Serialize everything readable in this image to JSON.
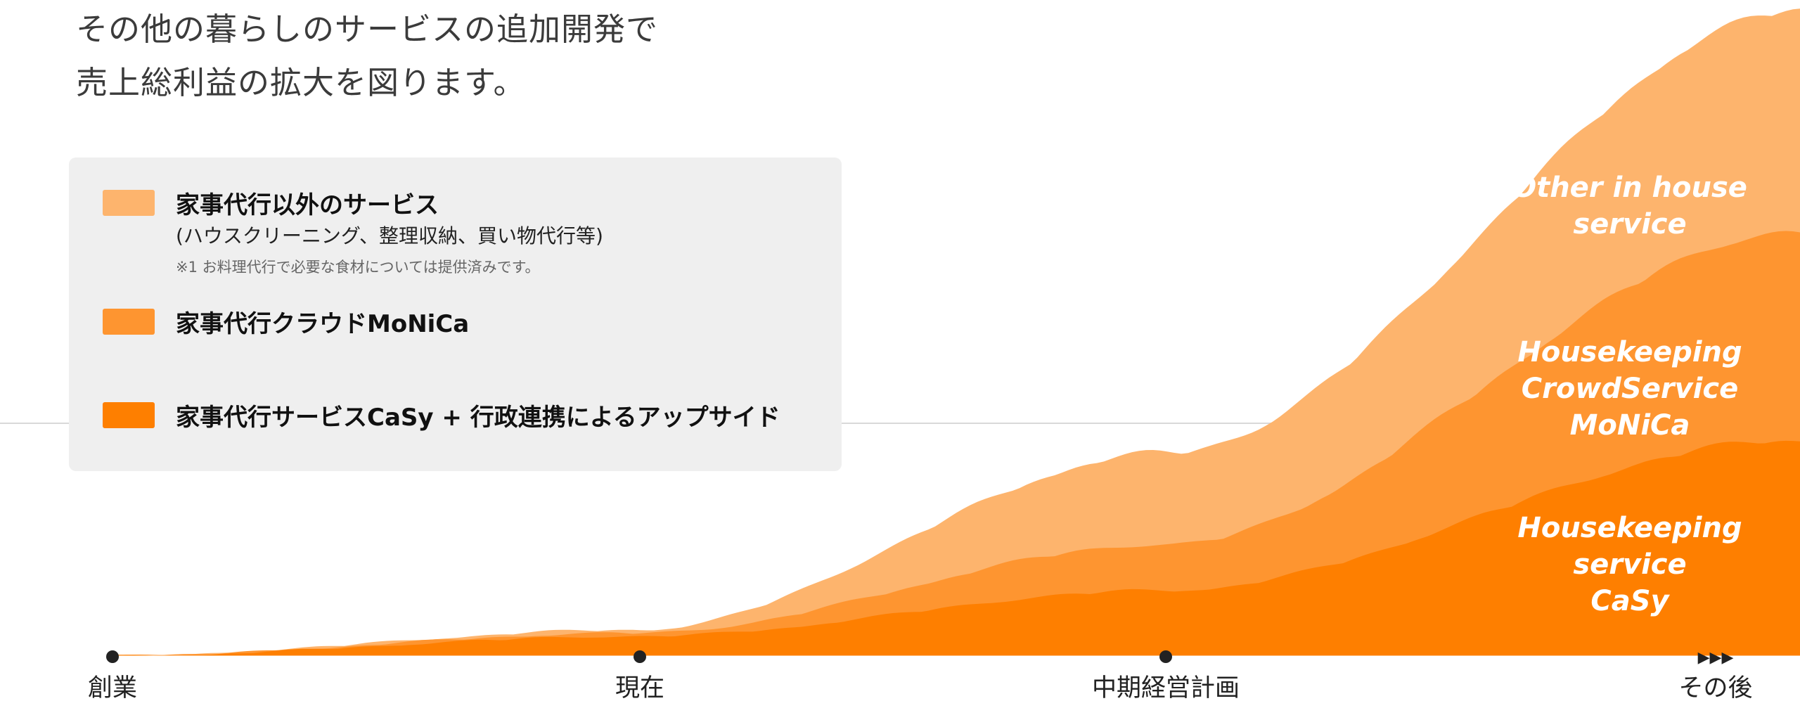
{
  "headline": {
    "line1": "その他の暮らしのサービスの追加開発で",
    "line2": "売上総利益の拡大を図ります。"
  },
  "legend": {
    "other": {
      "label": "家事代行以外のサービス",
      "sub": "(ハウスクリーニング、整理収納、買い物代行等)",
      "note": "※1 お料理代行で必要な食材については提供済みです。",
      "color": "#fdb46d"
    },
    "monica": {
      "label": "家事代行クラウドMoNiCa",
      "color": "#fe9530"
    },
    "casy": {
      "label": "家事代行サービスCaSy + 行政連携によるアップサイド",
      "color": "#fe7f00"
    }
  },
  "chart_data": {
    "type": "area",
    "stacked": true,
    "x": [
      "創業",
      "現在",
      "中期経営計画",
      "その後"
    ],
    "series": [
      {
        "name": "Housekeeping service CaSy",
        "label_lines": [
          "Housekeeping",
          "service",
          "CaSy"
        ],
        "color": "#fe7f00",
        "values": [
          0,
          3,
          10,
          33
        ]
      },
      {
        "name": "Housekeeping CrowdService MoNiCa",
        "label_lines": [
          "Housekeeping",
          "CrowdService",
          "MoNiCa"
        ],
        "color": "#fe9530",
        "values": [
          0,
          0.5,
          7,
          32
        ]
      },
      {
        "name": "Other in house service",
        "label_lines": [
          "Other in house",
          "service"
        ],
        "color": "#fdb46d",
        "values": [
          0,
          0.5,
          14,
          34
        ]
      }
    ],
    "x_axis": {
      "arrow_glyph": "▶▶▶"
    },
    "axis_line_color": "#ffffff",
    "reference_line_color": "#d9d9d9",
    "dot_color": "#222222"
  }
}
